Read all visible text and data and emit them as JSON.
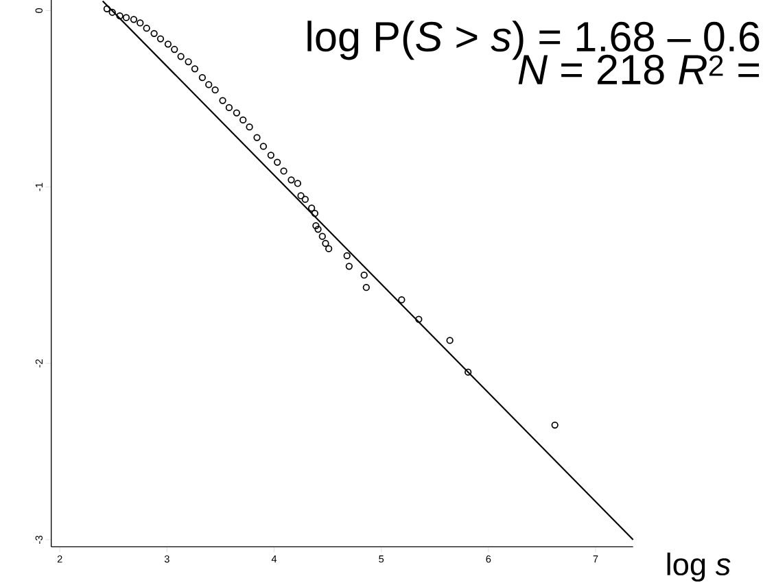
{
  "chart_data": {
    "type": "scatter",
    "xlabel": "log *s*",
    "annotations": [
      "log P(*S* > *s*) = 1.68 – 0.6",
      "*N* = 218   *R*$^{2}$ ="
    ],
    "xlim": [
      1.92,
      7.35
    ],
    "ylim": [
      -3.04,
      0.06
    ],
    "xticks": [
      2,
      3,
      4,
      5,
      6,
      7
    ],
    "yticks": [
      0,
      -1,
      -2,
      -3
    ],
    "grid": false,
    "series": [
      {
        "marker": "circle",
        "color": "#000000",
        "x": [
          2.44,
          2.49,
          2.56,
          2.62,
          2.69,
          2.75,
          2.81,
          2.88,
          2.94,
          3.01,
          3.07,
          3.13,
          3.2,
          3.26,
          3.33,
          3.39,
          3.45,
          3.52,
          3.58,
          3.65,
          3.71,
          3.77,
          3.84,
          3.9,
          3.97,
          4.03,
          4.09,
          4.16,
          4.22,
          4.25,
          4.29,
          4.35,
          4.38,
          4.39,
          4.41,
          4.45,
          4.48,
          4.51,
          4.68,
          4.7,
          4.84,
          4.86,
          5.19,
          5.35,
          5.64,
          5.81,
          6.62
        ],
        "values": [
          0.01,
          -0.01,
          -0.03,
          -0.04,
          -0.05,
          -0.07,
          -0.1,
          -0.13,
          -0.16,
          -0.19,
          -0.22,
          -0.26,
          -0.29,
          -0.33,
          -0.38,
          -0.42,
          -0.45,
          -0.51,
          -0.55,
          -0.58,
          -0.62,
          -0.66,
          -0.72,
          -0.77,
          -0.82,
          -0.86,
          -0.91,
          -0.96,
          -0.98,
          -1.05,
          -1.07,
          -1.12,
          -1.15,
          -1.22,
          -1.24,
          -1.28,
          -1.32,
          -1.35,
          -1.39,
          -1.45,
          -1.5,
          -1.57,
          -1.64,
          -1.75,
          -1.87,
          -2.05,
          -2.35
        ]
      },
      {
        "type": "line",
        "marker": "none",
        "color": "#000000",
        "x": [
          2.4,
          7.35
        ],
        "values": [
          0.054,
          -3.0
        ]
      }
    ]
  }
}
